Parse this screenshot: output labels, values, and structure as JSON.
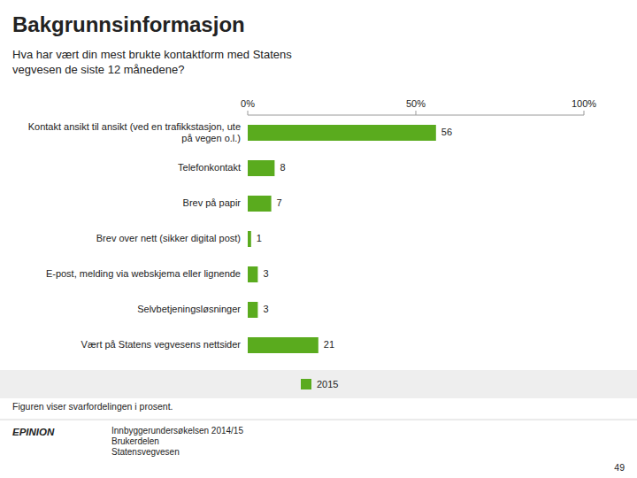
{
  "chart_data": {
    "type": "bar",
    "orientation": "horizontal",
    "title": "Bakgrunnsinformasjon",
    "subtitle": "Hva har vært din mest brukte kontaktform med Statens\nvegvesen de siste 12 månedene?",
    "categories": [
      "Kontakt ansikt til ansikt (ved en trafikkstasjon, ute\npå vegen o.l.)",
      "Telefonkontakt",
      "Brev på papir",
      "Brev over nett (sikker digital post)",
      "E-post, melding via webskjema eller lignende",
      "Selvbetjeningsløsninger",
      "Vært på Statens vegvesens nettsider"
    ],
    "series": [
      {
        "name": "2015",
        "color": "#5aab1e",
        "values": [
          56,
          8,
          7,
          1,
          3,
          3,
          21
        ]
      }
    ],
    "xlim": [
      0,
      100
    ],
    "xticks": [
      {
        "value": 0,
        "label": "0%"
      },
      {
        "value": 50,
        "label": "50%"
      },
      {
        "value": 100,
        "label": "100%"
      }
    ],
    "grid": false,
    "legend": "bottom",
    "data_labels": true,
    "annotations": [
      "Figuren viser svarfordelingen i prosent.",
      "EPINION",
      "Innbyggerundersøkelsen 2014/15\nBrukerdelen\nStatensvegvesen",
      "49"
    ]
  }
}
